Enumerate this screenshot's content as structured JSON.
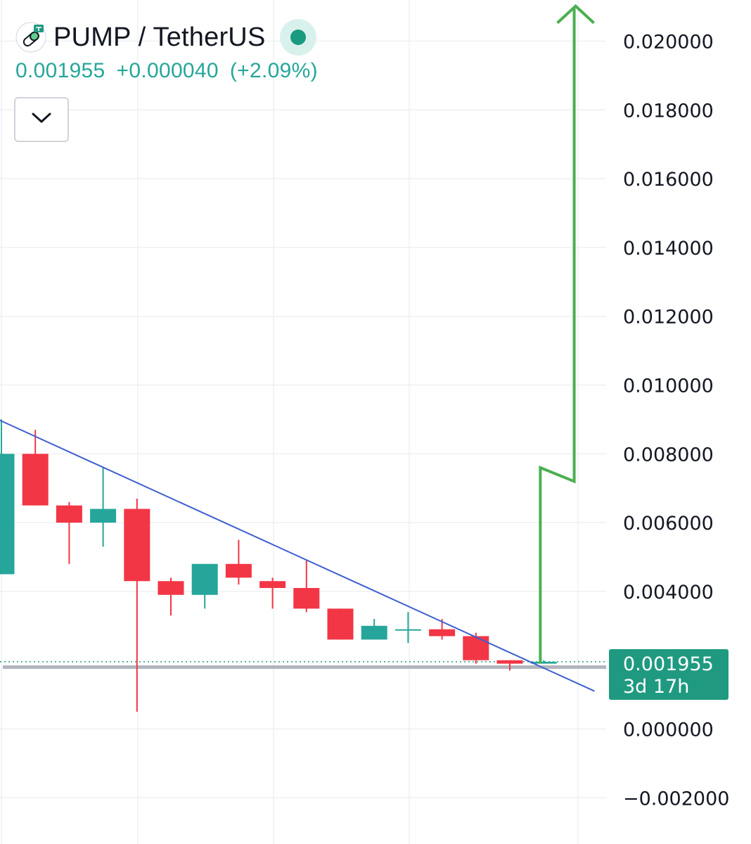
{
  "header": {
    "title": "PUMP / TetherUS",
    "last_price": "0.001955",
    "change": "+0.000040",
    "change_pct": "(+2.09%)"
  },
  "price_label": {
    "value": "0.001955",
    "countdown": "3d 17h"
  },
  "colors": {
    "up": "#26a69a",
    "down": "#f23645",
    "trendline": "#3f5fcf",
    "arrow": "#4caf50",
    "support": "#b2b5be",
    "grid": "#eef0f3"
  },
  "icons": {
    "coin": "pump-pill-icon",
    "status": "market-open-dot-icon",
    "collapse": "chevron-down-icon"
  },
  "chart_data": {
    "type": "candlestick",
    "title": "PUMP / TetherUS",
    "ylim": [
      -0.002,
      0.0212
    ],
    "y_ticks": [
      "0.020000",
      "0.018000",
      "0.016000",
      "0.014000",
      "0.012000",
      "0.010000",
      "0.008000",
      "0.006000",
      "0.004000",
      "0.000000",
      "−0.002000"
    ],
    "y_tick_values": [
      0.02,
      0.018,
      0.016,
      0.014,
      0.012,
      0.01,
      0.008,
      0.006,
      0.004,
      0.0,
      -0.002
    ],
    "candles": [
      {
        "open": 0.0045,
        "high": 0.009,
        "low": 0.0045,
        "close": 0.008
      },
      {
        "open": 0.008,
        "high": 0.0087,
        "low": 0.0065,
        "close": 0.0065
      },
      {
        "open": 0.0065,
        "high": 0.0066,
        "low": 0.0048,
        "close": 0.006
      },
      {
        "open": 0.006,
        "high": 0.0076,
        "low": 0.0053,
        "close": 0.0064
      },
      {
        "open": 0.0064,
        "high": 0.0067,
        "low": 0.0005,
        "close": 0.0043
      },
      {
        "open": 0.0043,
        "high": 0.0044,
        "low": 0.0033,
        "close": 0.0039
      },
      {
        "open": 0.0039,
        "high": 0.0048,
        "low": 0.0035,
        "close": 0.0048
      },
      {
        "open": 0.0048,
        "high": 0.0055,
        "low": 0.0042,
        "close": 0.0044
      },
      {
        "open": 0.0043,
        "high": 0.0044,
        "low": 0.0035,
        "close": 0.0041
      },
      {
        "open": 0.0041,
        "high": 0.0049,
        "low": 0.0034,
        "close": 0.0035
      },
      {
        "open": 0.0035,
        "high": 0.0035,
        "low": 0.0026,
        "close": 0.0026
      },
      {
        "open": 0.0026,
        "high": 0.0032,
        "low": 0.0026,
        "close": 0.003
      },
      {
        "open": 0.0029,
        "high": 0.0034,
        "low": 0.0025,
        "close": 0.0029
      },
      {
        "open": 0.0029,
        "high": 0.0032,
        "low": 0.0026,
        "close": 0.0027
      },
      {
        "open": 0.0027,
        "high": 0.0028,
        "low": 0.0019,
        "close": 0.002
      },
      {
        "open": 0.002,
        "high": 0.002,
        "low": 0.0017,
        "close": 0.0019
      },
      {
        "open": 0.0019,
        "high": 0.002,
        "low": 0.0019,
        "close": 0.001955
      }
    ],
    "current_price": 0.001955,
    "support_level": 0.0018,
    "trendline": [
      {
        "bar": -0.1,
        "price": 0.009
      },
      {
        "bar": 17.5,
        "price": 0.0011
      }
    ],
    "projection_arrow": [
      {
        "bar": 15.9,
        "price": 0.0019
      },
      {
        "bar": 15.9,
        "price": 0.0076
      },
      {
        "bar": 16.9,
        "price": 0.0072
      },
      {
        "bar": 16.9,
        "price": 0.021
      }
    ]
  }
}
